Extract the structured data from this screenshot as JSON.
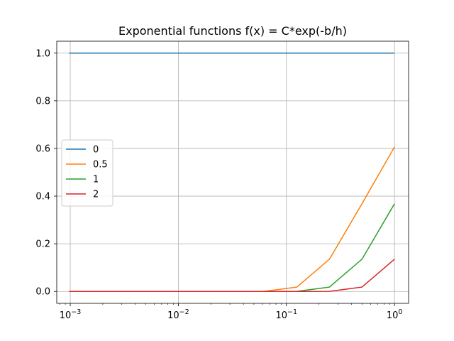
{
  "chart_data": {
    "type": "line",
    "title": "Exponential functions f(x) = C*exp(-b/h)",
    "xlabel": "",
    "ylabel": "",
    "x_scale": "log",
    "xlim": [
      0.00075,
      1.35
    ],
    "ylim": [
      -0.05,
      1.05
    ],
    "grid": true,
    "legend_position": "center-left",
    "x": [
      0.0009765625,
      0.001953125,
      0.00390625,
      0.0078125,
      0.015625,
      0.03125,
      0.0625,
      0.125,
      0.25,
      0.5,
      1.0
    ],
    "x_ticks": [
      {
        "value": 0.001,
        "base": "10",
        "exp": "−3"
      },
      {
        "value": 0.01,
        "base": "10",
        "exp": "−2"
      },
      {
        "value": 0.1,
        "base": "10",
        "exp": "−1"
      },
      {
        "value": 1,
        "base": "10",
        "exp": "0"
      }
    ],
    "y_ticks": [
      {
        "value": 0.0,
        "label": "0.0"
      },
      {
        "value": 0.2,
        "label": "0.2"
      },
      {
        "value": 0.4,
        "label": "0.4"
      },
      {
        "value": 0.6,
        "label": "0.6"
      },
      {
        "value": 0.8,
        "label": "0.8"
      },
      {
        "value": 1.0,
        "label": "1.0"
      }
    ],
    "series": [
      {
        "name": "0",
        "color": "#1f77b4",
        "values": [
          1,
          1,
          1,
          1,
          1,
          1,
          1,
          1,
          1,
          1,
          1
        ]
      },
      {
        "name": "0.5",
        "color": "#ff7f0e",
        "values": [
          0,
          0,
          0,
          0,
          0,
          0,
          0.0003,
          0.0183,
          0.1353,
          0.3679,
          0.6065
        ]
      },
      {
        "name": "1",
        "color": "#2ca02c",
        "values": [
          0,
          0,
          0,
          0,
          0,
          0,
          0,
          0.0003,
          0.0183,
          0.1353,
          0.3679
        ]
      },
      {
        "name": "2",
        "color": "#d62728",
        "values": [
          0,
          0,
          0,
          0,
          0,
          0,
          0,
          0,
          0.0003,
          0.0183,
          0.1353
        ]
      }
    ]
  }
}
